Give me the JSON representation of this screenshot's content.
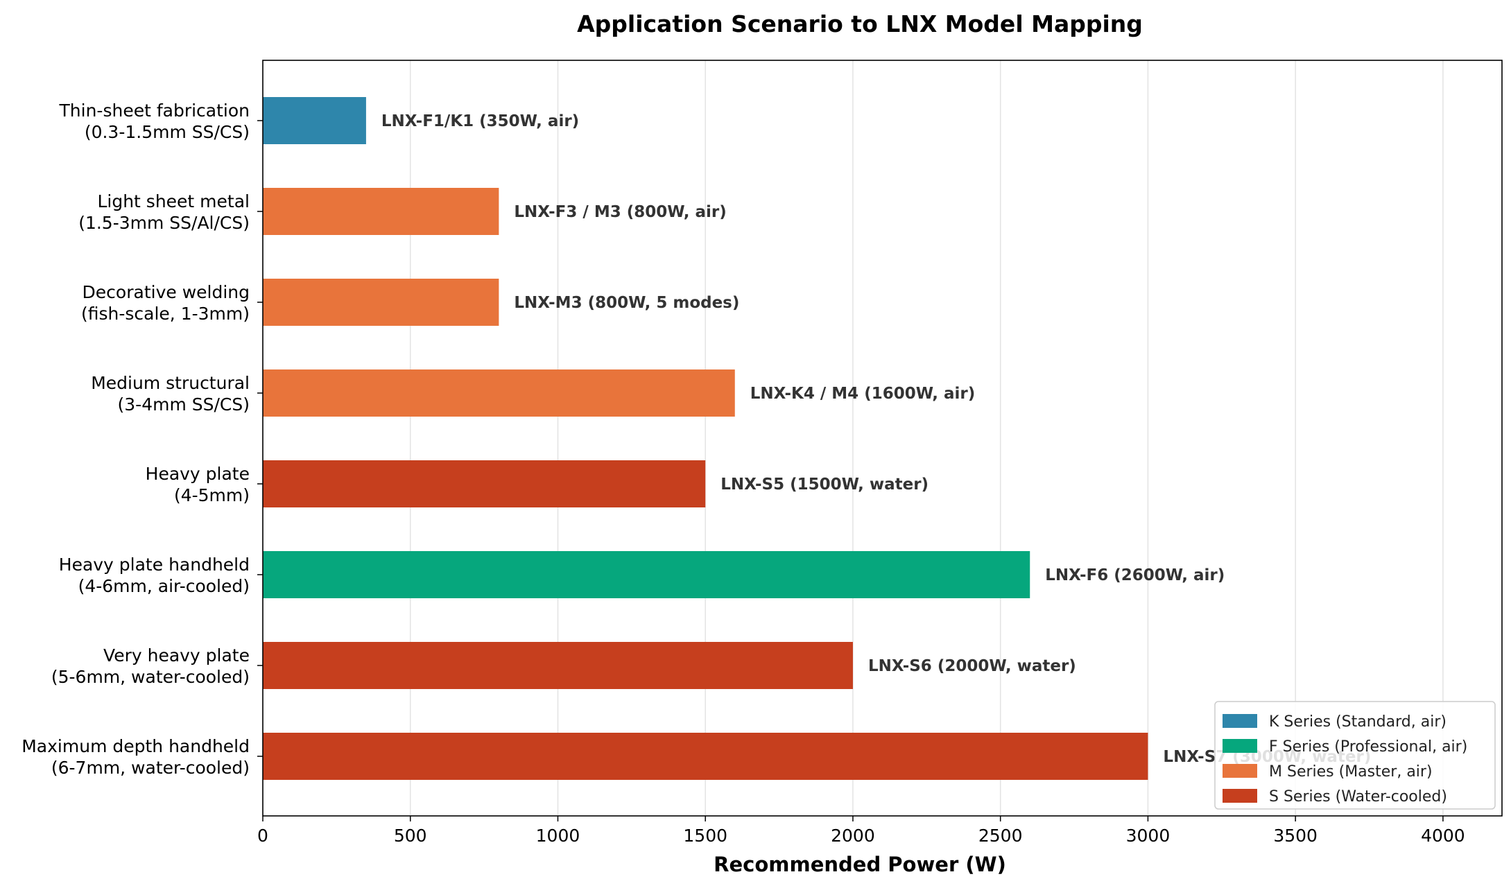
{
  "chart_data": {
    "type": "bar",
    "orientation": "horizontal",
    "title": "Application Scenario to LNX Model Mapping",
    "xlabel": "Recommended Power (W)",
    "ylabel": "",
    "xlim": [
      0,
      4200
    ],
    "xticks": [
      0,
      500,
      1000,
      1500,
      2000,
      2500,
      3000,
      3500,
      4000
    ],
    "grid": "vertical",
    "legend_position": "bottom-right",
    "colors": {
      "K": "#2e86ab",
      "F": "#06a77d",
      "M": "#e8743b",
      "S": "#c63f1e"
    },
    "categories": [
      [
        "Thin-sheet fabrication",
        "(0.3-1.5mm SS/CS)"
      ],
      [
        "Light sheet metal",
        "(1.5-3mm SS/Al/CS)"
      ],
      [
        "Decorative welding",
        "(fish-scale, 1-3mm)"
      ],
      [
        "Medium structural",
        "(3-4mm SS/CS)"
      ],
      [
        "Heavy plate",
        "(4-5mm)"
      ],
      [
        "Heavy plate handheld",
        "(4-6mm, air-cooled)"
      ],
      [
        "Very heavy plate",
        "(5-6mm, water-cooled)"
      ],
      [
        "Maximum depth handheld",
        "(6-7mm, water-cooled)"
      ]
    ],
    "values": [
      350,
      800,
      800,
      1600,
      1500,
      2600,
      2000,
      3000
    ],
    "series_keys": [
      "K",
      "M",
      "M",
      "M",
      "S",
      "F",
      "S",
      "S"
    ],
    "data_labels": [
      "LNX-F1/K1 (350W, air)",
      "LNX-F3 / M3 (800W, air)",
      "LNX-M3 (800W, 5 modes)",
      "LNX-K4 / M4 (1600W, air)",
      "LNX-S5 (1500W, water)",
      "LNX-F6 (2600W, air)",
      "LNX-S6 (2000W, water)",
      "LNX-S7 (3000W, water)"
    ],
    "legend": [
      {
        "key": "K",
        "label": "K Series (Standard, air)"
      },
      {
        "key": "F",
        "label": "F Series (Professional, air)"
      },
      {
        "key": "M",
        "label": "M Series (Master, air)"
      },
      {
        "key": "S",
        "label": "S Series (Water-cooled)"
      }
    ]
  }
}
